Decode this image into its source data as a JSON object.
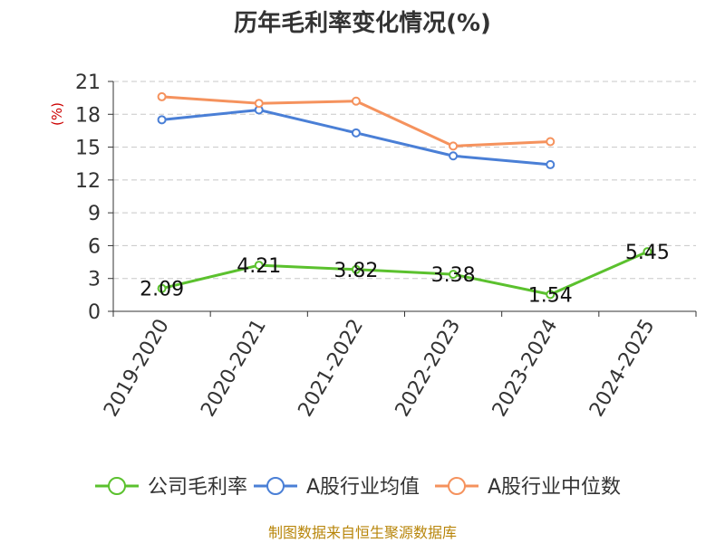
{
  "chart_data": {
    "type": "line",
    "title": "历年毛利率变化情况(%)",
    "y_unit_label": "(%)",
    "categories": [
      "2019-2020",
      "2020-2021",
      "2021-2022",
      "2022-2023",
      "2023-2024",
      "2024-2025"
    ],
    "ylim": [
      0,
      21
    ],
    "yticks": [
      0,
      3,
      6,
      9,
      12,
      15,
      18,
      21
    ],
    "grid": true,
    "legend_position": "bottom",
    "series": [
      {
        "name": "公司毛利率",
        "color": "#5bc12e",
        "values": [
          2.09,
          4.21,
          3.82,
          3.38,
          1.54,
          5.45
        ],
        "show_labels": true
      },
      {
        "name": "A股行业均值",
        "color": "#4a7fd6",
        "values": [
          17.5,
          18.4,
          16.3,
          14.2,
          13.4,
          null
        ],
        "show_labels": false
      },
      {
        "name": "A股行业中位数",
        "color": "#f5925d",
        "values": [
          19.6,
          19.0,
          19.2,
          15.1,
          15.5,
          null
        ],
        "show_labels": false
      }
    ]
  },
  "source_text": "制图数据来自恒生聚源数据库"
}
